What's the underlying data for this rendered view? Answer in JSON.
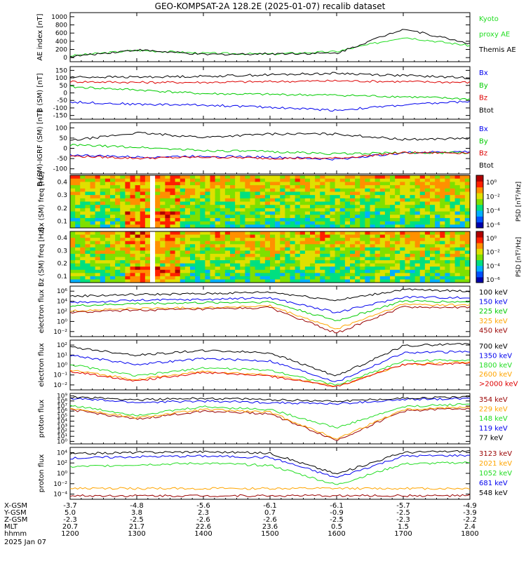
{
  "title": "GEO-KOMPSAT-2A 128.2E (2025-01-07) recalib dataset",
  "x_ticks": [
    "1200",
    "1300",
    "1400",
    "1500",
    "1600",
    "1700",
    "1800"
  ],
  "ephemeris": {
    "rows": [
      {
        "label": "X-GSM",
        "values": [
          "-3.7",
          "-4.8",
          "-5.6",
          "-6.1",
          "-6.1",
          "-5.7",
          "-4.9"
        ]
      },
      {
        "label": "Y-GSM",
        "values": [
          "5.0",
          "3.8",
          "2.3",
          "0.7",
          "-0.9",
          "-2.5",
          "-3.9"
        ]
      },
      {
        "label": "Z-GSM",
        "values": [
          "-2.3",
          "-2.5",
          "-2.6",
          "-2.6",
          "-2.5",
          "-2.3",
          "-2.2"
        ]
      },
      {
        "label": "MLT",
        "values": [
          "20.7",
          "21.7",
          "22.6",
          "23.6",
          "0.5",
          "1.5",
          "2.4"
        ]
      },
      {
        "label": "hhmm",
        "values": [
          "1200",
          "1300",
          "1400",
          "1500",
          "1600",
          "1700",
          "1800"
        ]
      }
    ],
    "date_label": "2025 Jan 07"
  },
  "colors": {
    "black": "#000000",
    "blue": "#0000ee",
    "green": "#00cc00",
    "red": "#dd0000",
    "orange": "#ffa500",
    "lime": "#22dd22",
    "darkred": "#990000"
  },
  "chart_data": [
    {
      "type": "line",
      "panel": "ae",
      "ylabel": "AE index [nT]",
      "ylim": [
        0,
        1000
      ],
      "yticks": [
        "1000",
        "800",
        "600",
        "400",
        "200",
        "0"
      ],
      "x": [
        "1200",
        "1300",
        "1400",
        "1500",
        "1600",
        "1700",
        "1800"
      ],
      "series": [
        {
          "name": "Kyoto proxy AE",
          "color": "#22dd22",
          "values": [
            60,
            190,
            120,
            100,
            160,
            500,
            300
          ]
        },
        {
          "name": "Themis AE",
          "color": "#000000",
          "values": [
            40,
            200,
            90,
            110,
            120,
            700,
            350
          ]
        }
      ],
      "legend": [
        {
          "text": "Kyoto",
          "color": "#22dd22"
        },
        {
          "text": "proxy AE",
          "color": "#22dd22"
        },
        {
          "text": "Themis AE",
          "color": "#000000"
        }
      ]
    },
    {
      "type": "line",
      "panel": "b_sm",
      "ylabel": "B (SM) [nT]",
      "ylim": [
        -150,
        150
      ],
      "yticks": [
        "150",
        "100",
        "50",
        "0",
        "-50",
        "-100",
        "-150"
      ],
      "x": [
        "1200",
        "1300",
        "1400",
        "1500",
        "1600",
        "1700",
        "1800"
      ],
      "series": [
        {
          "name": "Bx",
          "color": "#0000ee",
          "values": [
            -60,
            -75,
            -80,
            -95,
            -115,
            -80,
            -55
          ]
        },
        {
          "name": "By",
          "color": "#00cc00",
          "values": [
            40,
            20,
            -5,
            -10,
            -15,
            -25,
            -40
          ]
        },
        {
          "name": "Bz",
          "color": "#dd0000",
          "values": [
            75,
            70,
            70,
            75,
            80,
            75,
            70
          ]
        },
        {
          "name": "Btot",
          "color": "#000000",
          "values": [
            105,
            105,
            110,
            120,
            130,
            115,
            100
          ]
        }
      ],
      "legend": [
        {
          "text": "Bx",
          "color": "#0000ee"
        },
        {
          "text": "By",
          "color": "#00cc00"
        },
        {
          "text": "Bz",
          "color": "#dd0000"
        },
        {
          "text": "Btot",
          "color": "#000000"
        }
      ]
    },
    {
      "type": "line",
      "panel": "b_igrf",
      "ylabel": "B (SM)-IGRF (SM) [nT]",
      "ylim": [
        -100,
        100
      ],
      "yticks": [
        "100",
        "50",
        "0",
        "-50",
        "-100"
      ],
      "x": [
        "1200",
        "1300",
        "1400",
        "1500",
        "1600",
        "1700",
        "1800"
      ],
      "series": [
        {
          "name": "Bx",
          "color": "#0000ee",
          "values": [
            -30,
            -40,
            -35,
            -40,
            -50,
            -20,
            -15
          ]
        },
        {
          "name": "By",
          "color": "#00cc00",
          "values": [
            15,
            5,
            -10,
            -15,
            -25,
            -20,
            -20
          ]
        },
        {
          "name": "Bz",
          "color": "#dd0000",
          "values": [
            -35,
            -45,
            -40,
            -45,
            -45,
            -20,
            -20
          ]
        },
        {
          "name": "Btot",
          "color": "#000000",
          "values": [
            35,
            70,
            50,
            65,
            65,
            40,
            45
          ]
        }
      ],
      "legend": [
        {
          "text": "Bx",
          "color": "#0000ee"
        },
        {
          "text": "By",
          "color": "#00cc00"
        },
        {
          "text": "Bz",
          "color": "#dd0000"
        },
        {
          "text": "Btot",
          "color": "#000000"
        }
      ]
    },
    {
      "type": "heatmap",
      "panel": "bx_spec",
      "ylabel": "Bx (SM) freq [Hz]",
      "ylim": [
        0,
        0.5
      ],
      "yticks": [
        "0.4",
        "0.3",
        "0.2",
        "0.1"
      ],
      "colorbar_label": "PSD [nT²/Hz]",
      "colorbar_ticks": [
        "10⁰",
        "10⁻²",
        "10⁻⁴",
        "10⁻⁶"
      ],
      "gap_hour": "1320"
    },
    {
      "type": "heatmap",
      "panel": "bz_spec",
      "ylabel": "Bz (SM) freq [Hz]",
      "ylim": [
        0,
        0.5
      ],
      "yticks": [
        "0.4",
        "0.3",
        "0.2",
        "0.1"
      ],
      "colorbar_label": "PSD [nT²/Hz]",
      "colorbar_ticks": [
        "10⁰",
        "10⁻²",
        "10⁻⁴",
        "10⁻⁶"
      ],
      "gap_hour": "1320"
    },
    {
      "type": "line",
      "panel": "electron_low",
      "ylabel": "electron flux",
      "scale": "log",
      "yticks": [
        "10⁶",
        "10⁴",
        "10²",
        "10⁰",
        "10⁻²"
      ],
      "x": [
        "1200",
        "1300",
        "1400",
        "1500",
        "1600",
        "1700",
        "1800"
      ],
      "series": [
        {
          "name": "100 keV",
          "color": "#000000",
          "values": [
            4,
            4.2,
            4.3,
            4.5,
            3.5,
            4.8,
            4.6
          ]
        },
        {
          "name": "150 keV",
          "color": "#0000ee",
          "values": [
            3.2,
            3.5,
            3.6,
            3.8,
            2,
            3.9,
            3.8
          ]
        },
        {
          "name": "225 keV",
          "color": "#00cc00",
          "values": [
            2.8,
            3.1,
            3.2,
            3.3,
            1,
            3.4,
            3.3
          ]
        },
        {
          "name": "325 keV",
          "color": "#ffa500",
          "values": [
            2.2,
            2.5,
            2.6,
            2.8,
            0,
            3,
            2.9
          ]
        },
        {
          "name": "450 keV",
          "color": "#990000",
          "values": [
            2,
            2.3,
            2.4,
            2.6,
            -0.5,
            2.7,
            2.6
          ]
        }
      ],
      "legend": [
        {
          "text": "100 keV",
          "color": "#000000"
        },
        {
          "text": "150 keV",
          "color": "#0000ee"
        },
        {
          "text": "225 keV",
          "color": "#00cc00"
        },
        {
          "text": "325 keV",
          "color": "#ffa500"
        },
        {
          "text": "450 keV",
          "color": "#990000"
        }
      ]
    },
    {
      "type": "line",
      "panel": "electron_high",
      "ylabel": "electron flux",
      "scale": "log",
      "yticks": [
        "10²",
        "10¹",
        "10⁰",
        "10⁻¹",
        "10⁻²"
      ],
      "x": [
        "1200",
        "1300",
        "1400",
        "1500",
        "1600",
        "1700",
        "1800"
      ],
      "series": [
        {
          "name": "700 keV",
          "color": "#000000",
          "values": [
            1.5,
            0.8,
            1.2,
            1,
            -1,
            1.6,
            1.8
          ]
        },
        {
          "name": "1350 keV",
          "color": "#0000ee",
          "values": [
            0.8,
            0,
            0.5,
            0.3,
            -1.5,
            1,
            1.1
          ]
        },
        {
          "name": "1800 keV",
          "color": "#22dd22",
          "values": [
            0,
            -1,
            -0.3,
            -0.5,
            -1.8,
            0.3,
            0.4
          ]
        },
        {
          "name": "2600 keV",
          "color": "#ffa500",
          "values": [
            -0.5,
            -1.3,
            -0.6,
            -0.9,
            -1.9,
            0,
            0.2
          ]
        },
        {
          "name": ">2000 keV",
          "color": "#dd0000",
          "values": [
            -0.6,
            -1.4,
            -0.7,
            -1,
            -1.9,
            0,
            0.1
          ]
        }
      ],
      "legend": [
        {
          "text": "700 keV",
          "color": "#000000"
        },
        {
          "text": "1350 keV",
          "color": "#0000ee"
        },
        {
          "text": "1800 keV",
          "color": "#22dd22"
        },
        {
          "text": "2600 keV",
          "color": "#ffa500"
        },
        {
          "text": ">2000 keV",
          "color": "#dd0000"
        }
      ]
    },
    {
      "type": "line",
      "panel": "proton_low",
      "ylabel": "proton flux",
      "scale": "log",
      "yticks": [
        "10⁹",
        "10⁸",
        "10⁷",
        "10⁶",
        "10⁵",
        "10⁴",
        "10³",
        "10²",
        "10¹",
        "10⁰"
      ],
      "x": [
        "1200",
        "1300",
        "1400",
        "1500",
        "1600",
        "1700",
        "1800"
      ],
      "series": [
        {
          "name": "354 keV",
          "color": "#990000",
          "values": [
            3,
            2.3,
            2.9,
            2.7,
            0.8,
            2.9,
            3.1
          ]
        },
        {
          "name": "229 keV",
          "color": "#ffa500",
          "values": [
            3.1,
            2.4,
            3,
            2.8,
            0.9,
            3,
            3.2
          ]
        },
        {
          "name": "148 keV",
          "color": "#22dd22",
          "values": [
            3.3,
            2.6,
            3.2,
            3,
            1.7,
            3.2,
            3.4
          ]
        },
        {
          "name": "119 keV",
          "color": "#0000ee",
          "values": [
            3.8,
            3.5,
            3.6,
            3.5,
            3.4,
            3.7,
            3.8
          ]
        },
        {
          "name": "77 keV",
          "color": "#000000",
          "values": [
            3.9,
            3.7,
            3.8,
            3.7,
            3.6,
            3.8,
            3.9
          ]
        }
      ],
      "legend": [
        {
          "text": "354 keV",
          "color": "#990000"
        },
        {
          "text": "229 keV",
          "color": "#ffa500"
        },
        {
          "text": "148 keV",
          "color": "#22dd22"
        },
        {
          "text": "119 keV",
          "color": "#0000ee"
        },
        {
          "text": "77 keV",
          "color": "#000000"
        }
      ]
    },
    {
      "type": "line",
      "panel": "proton_high",
      "ylabel": "proton flux",
      "scale": "log",
      "yticks": [
        "10⁴",
        "10²",
        "10⁰",
        "10⁻²",
        "10⁻⁴"
      ],
      "x": [
        "1200",
        "1300",
        "1400",
        "1500",
        "1600",
        "1700",
        "1800"
      ],
      "series": [
        {
          "name": "3123 keV",
          "color": "#990000",
          "values": [
            -4,
            -4,
            -4,
            -4,
            -4,
            -4,
            -4
          ]
        },
        {
          "name": "2021 keV",
          "color": "#ffa500",
          "values": [
            -3,
            -3,
            -3,
            -3,
            -3,
            -3,
            -3
          ]
        },
        {
          "name": "1052 keV",
          "color": "#22dd22",
          "values": [
            0,
            0.3,
            0.5,
            0.2,
            -2.5,
            0.4,
            0.6
          ]
        },
        {
          "name": "681 keV",
          "color": "#0000ee",
          "values": [
            1.2,
            1.4,
            1.5,
            1.3,
            -1.5,
            1.5,
            1.6
          ]
        },
        {
          "name": "548 keV",
          "color": "#000000",
          "values": [
            1.8,
            2,
            2.1,
            1.9,
            -1,
            2,
            2.2
          ]
        }
      ],
      "legend": [
        {
          "text": "3123 keV",
          "color": "#990000"
        },
        {
          "text": "2021 keV",
          "color": "#ffa500"
        },
        {
          "text": "1052 keV",
          "color": "#22dd22"
        },
        {
          "text": "681 keV",
          "color": "#0000ee"
        },
        {
          "text": "548 keV",
          "color": "#000000"
        }
      ]
    }
  ]
}
